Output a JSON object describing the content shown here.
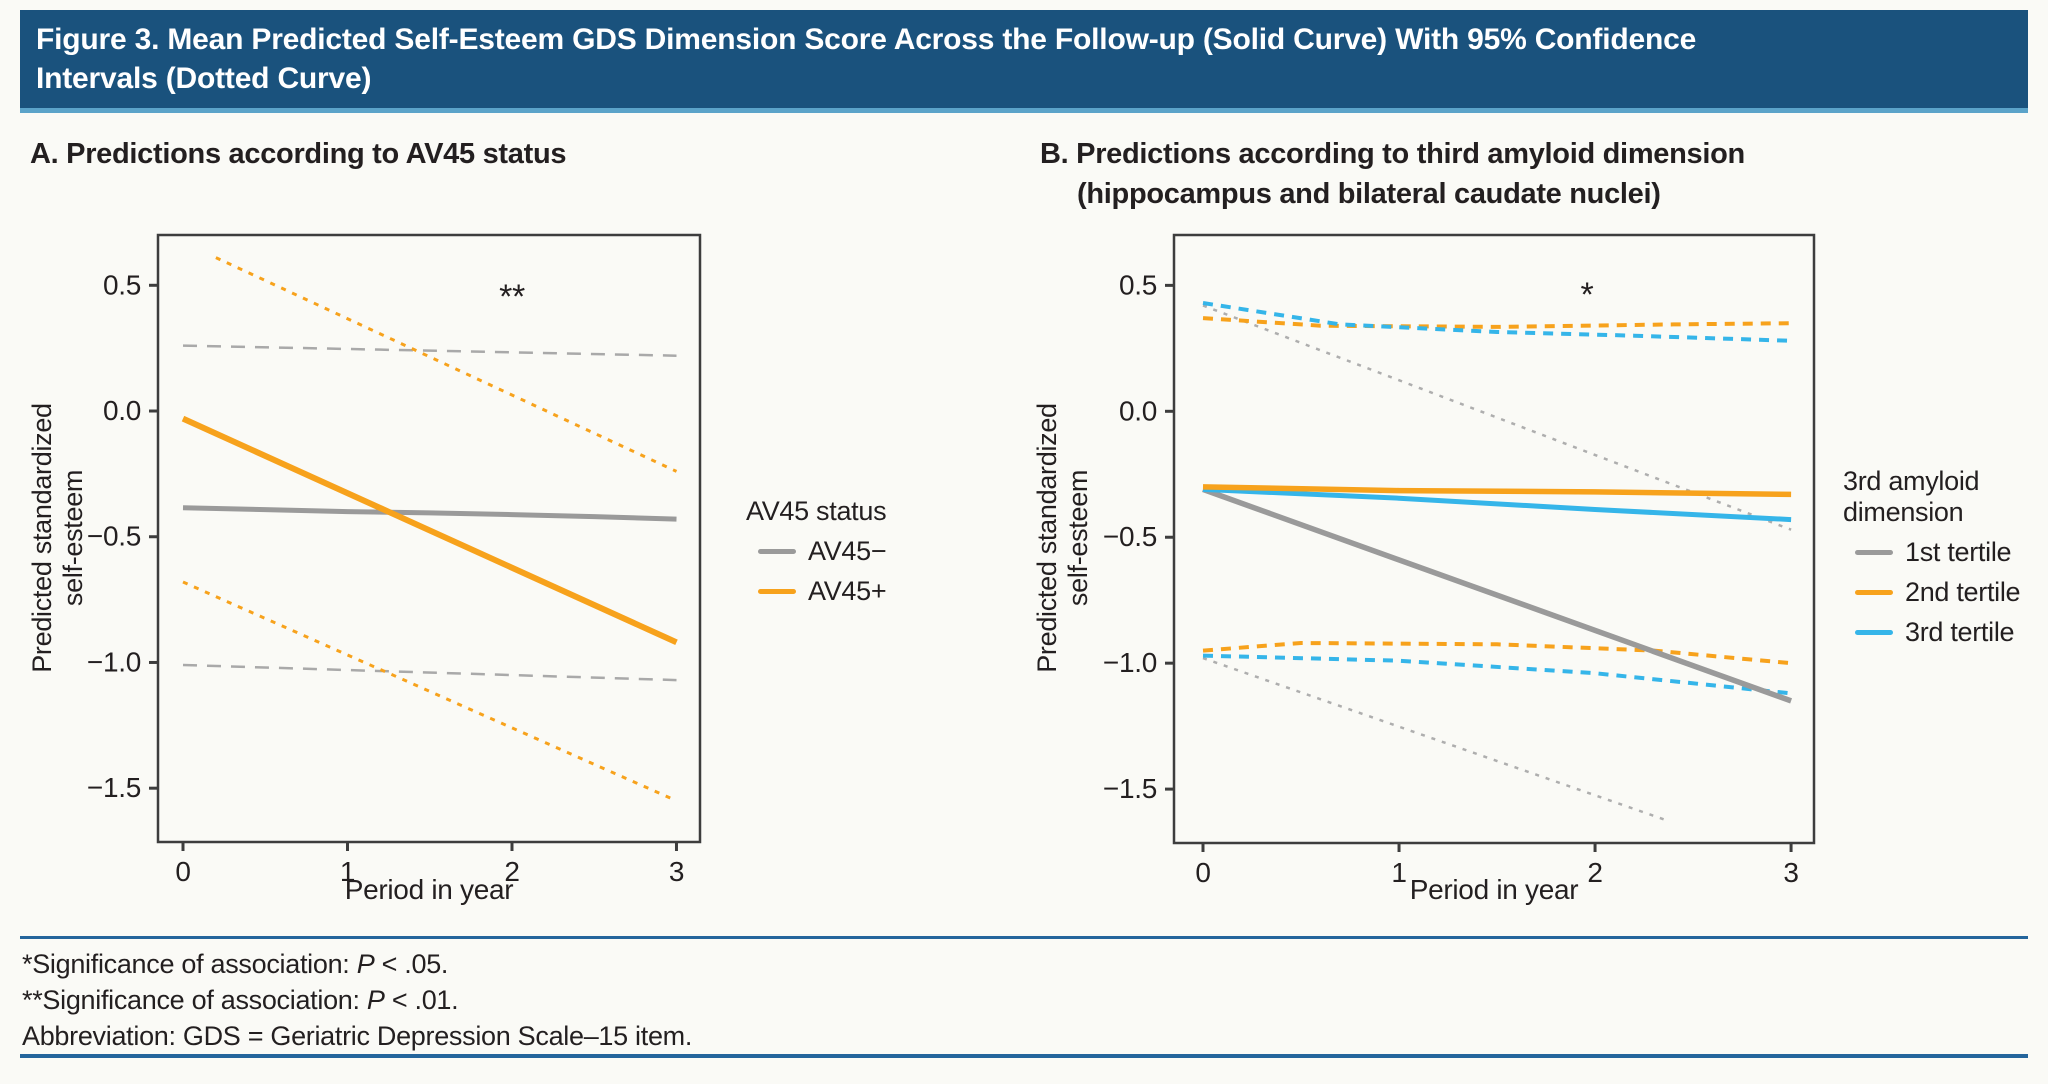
{
  "header": {
    "title_line1": "Figure 3. Mean Predicted Self-Esteem GDS Dimension Score Across the Follow-up (Solid Curve) With 95% Confidence",
    "title_line2": "Intervals (Dotted Curve)"
  },
  "colors": {
    "header_bg": "#1a527d",
    "header_underline": "#5ba3c9",
    "rule_blue": "#24659c",
    "axis": "#3d3d3d",
    "text": "#231f20",
    "gray": "#9a9a9a",
    "gray_ci": "#a9a9a9",
    "orange": "#f7a21c",
    "blue": "#35b5e9"
  },
  "footnotes": [
    {
      "pre": "*Significance of association: ",
      "em": "P",
      "post": " < .05."
    },
    {
      "pre": "**Significance of association: ",
      "em": "P",
      "post": " < .01."
    },
    {
      "pre": "Abbreviation: GDS = Geriatric Depression Scale–15 item.",
      "em": "",
      "post": ""
    }
  ],
  "chart_data": [
    {
      "id": "a",
      "type": "line",
      "title": "A. Predictions according to AV45 status",
      "significance": "**",
      "xlabel": "Period in year",
      "ylabel_lines": [
        "Predicted standardized",
        "self-esteem"
      ],
      "xlim": [
        -0.152,
        3.143
      ],
      "ylim": [
        -1.714,
        0.7
      ],
      "x_ticks": [
        {
          "v": 0,
          "label": "0"
        },
        {
          "v": 1,
          "label": "1"
        },
        {
          "v": 2,
          "label": "2"
        },
        {
          "v": 3,
          "label": "3"
        }
      ],
      "y_ticks": [
        {
          "v": 0.5,
          "label": "0.5"
        },
        {
          "v": 0.0,
          "label": "0.0"
        },
        {
          "v": -0.5,
          "label": "−0.5"
        },
        {
          "v": -1.0,
          "label": "−1.0"
        },
        {
          "v": -1.5,
          "label": "−1.5"
        }
      ],
      "legend": {
        "title_lines": [
          "AV45 status"
        ],
        "entries": [
          {
            "label": "AV45−",
            "color": "#9a9a9a"
          },
          {
            "label": "AV45+",
            "color": "#f7a21c"
          }
        ]
      },
      "series": [
        {
          "name": "AV45− upper 95% CI",
          "role": "ci-upper",
          "color": "#a9a9a9",
          "width": 2.5,
          "dash": "14 10",
          "points": [
            [
              0,
              0.26
            ],
            [
              3,
              0.22
            ]
          ]
        },
        {
          "name": "AV45− lower 95% CI",
          "role": "ci-lower",
          "color": "#a9a9a9",
          "width": 2.5,
          "dash": "14 10",
          "points": [
            [
              0,
              -1.01
            ],
            [
              3,
              -1.07
            ]
          ]
        },
        {
          "name": "AV45+ upper 95% CI",
          "role": "ci-upper",
          "color": "#f7a21c",
          "width": 3,
          "dash": "5 7",
          "points": [
            [
              0.2,
              0.61
            ],
            [
              3,
              -0.24
            ]
          ]
        },
        {
          "name": "AV45+ lower 95% CI",
          "role": "ci-lower",
          "color": "#f7a21c",
          "width": 3,
          "dash": "5 7",
          "points": [
            [
              0,
              -0.68
            ],
            [
              3,
              -1.55
            ]
          ]
        },
        {
          "name": "AV45− mean",
          "role": "mean",
          "color": "#9a9a9a",
          "width": 5,
          "dash": null,
          "points": [
            [
              0,
              -0.385
            ],
            [
              0.5,
              -0.392
            ],
            [
              1,
              -0.4
            ],
            [
              1.5,
              -0.405
            ],
            [
              2,
              -0.412
            ],
            [
              2.5,
              -0.42
            ],
            [
              3,
              -0.43
            ]
          ]
        },
        {
          "name": "AV45+ mean",
          "role": "mean",
          "color": "#f7a21c",
          "width": 6,
          "dash": null,
          "points": [
            [
              0,
              -0.03
            ],
            [
              3,
              -0.92
            ]
          ]
        }
      ]
    },
    {
      "id": "b",
      "type": "line",
      "title_line1": "B. Predictions according to third amyloid dimension",
      "title_line2": "(hippocampus and bilateral caudate nuclei)",
      "significance": "*",
      "xlabel": "Period in year",
      "ylabel_lines": [
        "Predicted standardized",
        "self-esteem"
      ],
      "xlim": [
        -0.148,
        3.117
      ],
      "ylim": [
        -1.714,
        0.7
      ],
      "x_ticks": [
        {
          "v": 0,
          "label": "0"
        },
        {
          "v": 1,
          "label": "1"
        },
        {
          "v": 2,
          "label": "2"
        },
        {
          "v": 3,
          "label": "3"
        }
      ],
      "y_ticks": [
        {
          "v": 0.5,
          "label": "0.5"
        },
        {
          "v": 0.0,
          "label": "0.0"
        },
        {
          "v": -0.5,
          "label": "−0.5"
        },
        {
          "v": -1.0,
          "label": "−1.0"
        },
        {
          "v": -1.5,
          "label": "−1.5"
        }
      ],
      "legend": {
        "title_lines": [
          "3rd amyloid",
          "dimension"
        ],
        "entries": [
          {
            "label": "1st tertile",
            "color": "#9a9a9a"
          },
          {
            "label": "2nd tertile",
            "color": "#f7a21c"
          },
          {
            "label": "3rd tertile",
            "color": "#35b5e9"
          }
        ]
      },
      "series": [
        {
          "name": "1st tertile upper 95% CI",
          "role": "ci-upper",
          "color": "#aeaeae",
          "width": 2.5,
          "dash": "4 7",
          "points": [
            [
              0,
              0.42
            ],
            [
              3,
              -0.47
            ]
          ]
        },
        {
          "name": "1st tertile lower 95% CI",
          "role": "ci-lower",
          "color": "#aeaeae",
          "width": 2.5,
          "dash": "4 7",
          "points": [
            [
              0,
              -0.98
            ],
            [
              2.35,
              -1.62
            ]
          ]
        },
        {
          "name": "2nd tertile upper 95% CI",
          "role": "ci-upper",
          "color": "#f7a21c",
          "width": 4,
          "dash": "10 8",
          "points": [
            [
              0,
              0.37
            ],
            [
              0.6,
              0.34
            ],
            [
              1.5,
              0.335
            ],
            [
              2.4,
              0.345
            ],
            [
              3,
              0.35
            ]
          ]
        },
        {
          "name": "2nd tertile lower 95% CI",
          "role": "ci-lower",
          "color": "#f7a21c",
          "width": 4,
          "dash": "10 8",
          "points": [
            [
              0,
              -0.95
            ],
            [
              0.5,
              -0.92
            ],
            [
              1.5,
              -0.925
            ],
            [
              2.3,
              -0.95
            ],
            [
              3,
              -1.0
            ]
          ]
        },
        {
          "name": "3rd tertile upper 95% CI",
          "role": "ci-upper",
          "color": "#35b5e9",
          "width": 4,
          "dash": "10 8",
          "points": [
            [
              0,
              0.43
            ],
            [
              0.7,
              0.345
            ],
            [
              1.5,
              0.315
            ],
            [
              2.2,
              0.3
            ],
            [
              3,
              0.28
            ]
          ]
        },
        {
          "name": "3rd tertile lower 95% CI",
          "role": "ci-lower",
          "color": "#35b5e9",
          "width": 4,
          "dash": "10 8",
          "points": [
            [
              0,
              -0.97
            ],
            [
              1,
              -0.99
            ],
            [
              2,
              -1.04
            ],
            [
              3,
              -1.12
            ]
          ]
        },
        {
          "name": "1st tertile mean",
          "role": "mean",
          "color": "#9a9a9a",
          "width": 5.5,
          "dash": null,
          "points": [
            [
              0,
              -0.31
            ],
            [
              3,
              -1.15
            ]
          ]
        },
        {
          "name": "3rd tertile mean",
          "role": "mean",
          "color": "#35b5e9",
          "width": 5,
          "dash": null,
          "points": [
            [
              0,
              -0.31
            ],
            [
              1,
              -0.345
            ],
            [
              2,
              -0.39
            ],
            [
              3,
              -0.43
            ]
          ]
        },
        {
          "name": "2nd tertile mean",
          "role": "mean",
          "color": "#f7a21c",
          "width": 5.5,
          "dash": null,
          "points": [
            [
              0,
              -0.3
            ],
            [
              1,
              -0.315
            ],
            [
              2,
              -0.32
            ],
            [
              3,
              -0.33
            ]
          ]
        }
      ]
    }
  ]
}
